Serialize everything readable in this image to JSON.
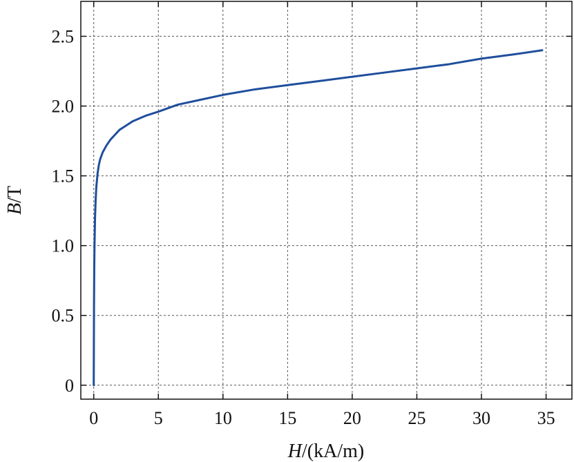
{
  "chart_data": {
    "type": "line",
    "title": "",
    "xlabel_var": "H",
    "xlabel_unit": "/(kA/m)",
    "ylabel_var": "B",
    "ylabel_unit": "/T",
    "xlim": [
      -1,
      37
    ],
    "ylim": [
      -0.1,
      2.75
    ],
    "xticks": [
      0,
      5,
      10,
      15,
      20,
      25,
      30,
      35
    ],
    "xtick_labels": [
      "0",
      "5",
      "10",
      "15",
      "20",
      "25",
      "30",
      "35"
    ],
    "yticks": [
      0,
      0.5,
      1.0,
      1.5,
      2.0,
      2.5
    ],
    "ytick_labels": [
      "0",
      "0.5",
      "1.0",
      "1.5",
      "2.0",
      "2.5"
    ],
    "grid": true,
    "line_color": "#1f4e9c",
    "series": [
      {
        "x": [
          0,
          0.02,
          0.04,
          0.06,
          0.1,
          0.15,
          0.2,
          0.3,
          0.4,
          0.5,
          0.7,
          1.0,
          1.3,
          1.6,
          2.0,
          2.5,
          3.0,
          4.0,
          5.0,
          6.5,
          8.0,
          10,
          12.5,
          15,
          17.5,
          20,
          22.5,
          25,
          27.5,
          30,
          32.5,
          34.7
        ],
        "y": [
          0,
          0.55,
          0.85,
          1.0,
          1.2,
          1.33,
          1.42,
          1.52,
          1.58,
          1.62,
          1.67,
          1.72,
          1.76,
          1.79,
          1.83,
          1.86,
          1.89,
          1.93,
          1.96,
          2.01,
          2.04,
          2.08,
          2.12,
          2.15,
          2.18,
          2.21,
          2.24,
          2.27,
          2.3,
          2.34,
          2.37,
          2.4
        ]
      }
    ]
  }
}
